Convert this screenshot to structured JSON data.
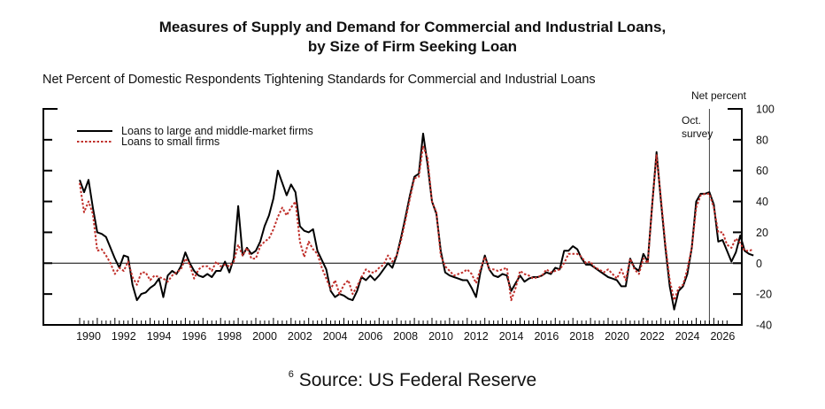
{
  "header": {
    "title_line1": "Measures of Supply and Demand for Commercial and Industrial Loans,",
    "title_line2": "by Size of Firm Seeking Loan",
    "subtitle": "Net Percent of Domestic Respondents Tightening Standards for Commercial and Industrial Loans"
  },
  "footer": {
    "superscript": "6",
    "text": "Source: US Federal Reserve"
  },
  "chart_data": {
    "type": "line",
    "title": "Net Percent of Domestic Respondents Tightening Standards for Commercial and Industrial Loans",
    "ylabel": "Net percent",
    "xlabel": "",
    "ylim": [
      -40,
      100
    ],
    "xlim": [
      1989.75,
      2027
    ],
    "yticks": [
      -40,
      -20,
      0,
      20,
      40,
      60,
      80,
      100
    ],
    "xticks": [
      1990,
      1992,
      1994,
      1996,
      1998,
      2000,
      2002,
      2004,
      2006,
      2008,
      2010,
      2012,
      2014,
      2016,
      2018,
      2020,
      2022,
      2024,
      2026
    ],
    "zero_line": true,
    "grid": false,
    "legend_position": "top-left",
    "annotation": {
      "x": 2025.75,
      "label_line1": "Oct.",
      "label_line2": "survey"
    },
    "x_start": 1990.0,
    "x_step": 0.25,
    "series": [
      {
        "name": "Loans to large and middle-market firms",
        "color": "#000000",
        "style": "solid",
        "values": [
          54,
          46,
          54,
          36,
          20,
          19,
          17,
          10,
          3,
          -3,
          5,
          4,
          -14,
          -24,
          -20,
          -19,
          -16,
          -14,
          -10,
          -22,
          -8,
          -5,
          -7,
          -2,
          7,
          0,
          -5,
          -8,
          -9,
          -7,
          -9,
          -5,
          -5,
          1,
          -6,
          3,
          37,
          5,
          10,
          6,
          8,
          14,
          24,
          31,
          42,
          60,
          52,
          44,
          51,
          46,
          24,
          21,
          20,
          22,
          8,
          2,
          -4,
          -18,
          -22,
          -20,
          -21,
          -23,
          -24,
          -18,
          -9,
          -11,
          -8,
          -11,
          -8,
          -4,
          0,
          -3,
          5,
          17,
          30,
          44,
          56,
          58,
          84,
          64,
          40,
          32,
          8,
          -6,
          -8,
          -9,
          -10,
          -11,
          -11,
          -16,
          -22,
          -6,
          5,
          -4,
          -8,
          -9,
          -7,
          -8,
          -18,
          -13,
          -8,
          -12,
          -10,
          -9,
          -9,
          -8,
          -6,
          -7,
          -3,
          -4,
          8,
          8,
          11,
          9,
          3,
          -1,
          -1,
          -3,
          -5,
          -7,
          -9,
          -10,
          -11,
          -15,
          -15,
          3,
          -3,
          -5,
          6,
          1,
          38,
          72,
          40,
          10,
          -15,
          -30,
          -18,
          -15,
          -7,
          10,
          40,
          45,
          45,
          46,
          38,
          14,
          15,
          8,
          1,
          7,
          18,
          8,
          6,
          5
        ]
      },
      {
        "name": "Loans to small firms",
        "color": "#c0302b",
        "style": "dotted",
        "values": [
          52,
          33,
          40,
          32,
          8,
          9,
          5,
          0,
          -7,
          -3,
          -5,
          1,
          -9,
          -14,
          -6,
          -6,
          -11,
          -8,
          -9,
          -10,
          -12,
          -8,
          -6,
          -4,
          3,
          -1,
          -10,
          -4,
          -2,
          -2,
          -5,
          1,
          -2,
          -1,
          -2,
          1,
          12,
          5,
          10,
          3,
          3,
          11,
          14,
          16,
          22,
          30,
          36,
          31,
          36,
          40,
          14,
          4,
          14,
          9,
          6,
          -3,
          -10,
          -17,
          -11,
          -20,
          -14,
          -11,
          -20,
          -15,
          -9,
          -4,
          -6,
          -6,
          -3,
          -1,
          5,
          1,
          5,
          15,
          28,
          42,
          55,
          56,
          76,
          68,
          40,
          33,
          5,
          -2,
          -5,
          -8,
          -7,
          -6,
          -4,
          -7,
          -13,
          -4,
          4,
          -4,
          -4,
          -5,
          -4,
          -3,
          -24,
          -16,
          -5,
          -7,
          -8,
          -10,
          -9,
          -8,
          -4,
          -6,
          -5,
          -4,
          0,
          6,
          6,
          6,
          4,
          0,
          1,
          -3,
          -4,
          -6,
          -4,
          -7,
          -10,
          -4,
          -11,
          3,
          -4,
          -7,
          3,
          0,
          38,
          70,
          42,
          12,
          -11,
          -24,
          -16,
          -14,
          -4,
          10,
          36,
          44,
          45,
          45,
          36,
          20,
          20,
          12,
          10,
          16,
          13,
          8,
          8,
          9
        ]
      }
    ]
  }
}
